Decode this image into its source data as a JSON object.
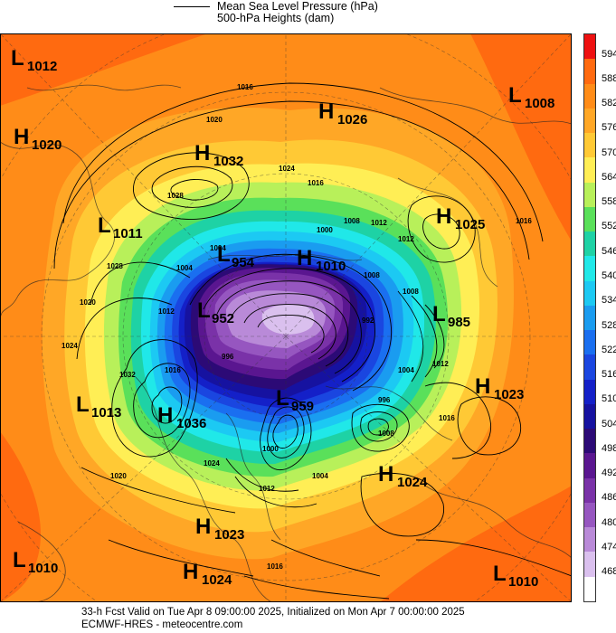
{
  "header": {
    "legend_line_label": "Mean Sea Level Pressure (hPa)",
    "subtitle": "500-hPa Heights (dam)"
  },
  "footer": {
    "line1": "33-h Fcst Valid on Tue Apr  8 09:00:00 2025, Initialized on Mon Apr  7 00:00:00 2025",
    "line2": "ECMWF-HRES  - meteocentre.com"
  },
  "colorbar": {
    "levels": [
      {
        "label": "594",
        "color": "#ee1111"
      },
      {
        "label": "588",
        "color": "#ff6a10"
      },
      {
        "label": "582",
        "color": "#ff8c18"
      },
      {
        "label": "576",
        "color": "#ffa726"
      },
      {
        "label": "570",
        "color": "#ffc935"
      },
      {
        "label": "564",
        "color": "#ffee55"
      },
      {
        "label": "558",
        "color": "#b8f05a"
      },
      {
        "label": "552",
        "color": "#5ae05a"
      },
      {
        "label": "546",
        "color": "#1ed2a5"
      },
      {
        "label": "540",
        "color": "#20e8e8"
      },
      {
        "label": "534",
        "color": "#1cc9f3"
      },
      {
        "label": "528",
        "color": "#1a9cf0"
      },
      {
        "label": "522",
        "color": "#1a6ff0"
      },
      {
        "label": "516",
        "color": "#1a46e0"
      },
      {
        "label": "510",
        "color": "#1420c8"
      },
      {
        "label": "504",
        "color": "#1612a0"
      },
      {
        "label": "498",
        "color": "#2c0a76"
      },
      {
        "label": "492",
        "color": "#5a1690"
      },
      {
        "label": "486",
        "color": "#7a32a8"
      },
      {
        "label": "480",
        "color": "#9656c0"
      },
      {
        "label": "474",
        "color": "#b98ad8"
      },
      {
        "label": "468",
        "color": "#dac0ee"
      },
      {
        "label": "",
        "color": "#ffffff"
      }
    ]
  },
  "centers": [
    {
      "type": "L",
      "value": "1012"
    },
    {
      "type": "H",
      "value": "1020"
    },
    {
      "type": "H",
      "value": "1032"
    },
    {
      "type": "H",
      "value": "1026"
    },
    {
      "type": "L",
      "value": "1008"
    },
    {
      "type": "H",
      "value": "1025"
    },
    {
      "type": "L",
      "value": "1011"
    },
    {
      "type": "L",
      "value": "954"
    },
    {
      "type": "H",
      "value": "1010"
    },
    {
      "type": "L",
      "value": "952"
    },
    {
      "type": "L",
      "value": "985"
    },
    {
      "type": "L",
      "value": "959"
    },
    {
      "type": "L",
      "value": "1013"
    },
    {
      "type": "H",
      "value": "1036"
    },
    {
      "type": "H",
      "value": "1023"
    },
    {
      "type": "H",
      "value": "1024"
    },
    {
      "type": "H",
      "value": "1023"
    },
    {
      "type": "L",
      "value": "1010"
    },
    {
      "type": "H",
      "value": "1024"
    },
    {
      "type": "L",
      "value": "1010"
    }
  ],
  "isobar_labels": [
    "1016",
    "1020",
    "1028",
    "1024",
    "1016",
    "1012",
    "1008",
    "1000",
    "1012",
    "1008",
    "1004",
    "1020",
    "1028",
    "1024",
    "1032",
    "1016",
    "1012",
    "1004",
    "996",
    "1008",
    "1016",
    "1012",
    "992",
    "1004",
    "1008",
    "996",
    "1000",
    "1004",
    "1020",
    "1024",
    "1012",
    "1016",
    "1016"
  ]
}
